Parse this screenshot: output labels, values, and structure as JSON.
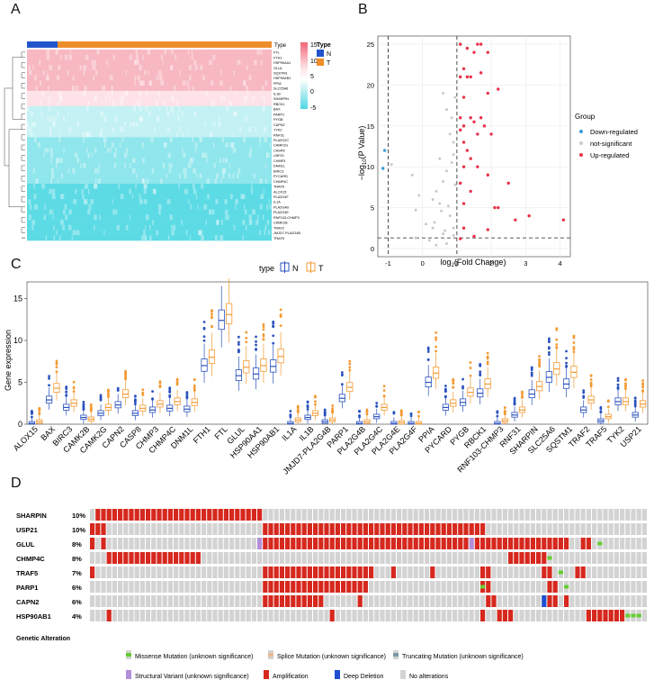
{
  "panels": {
    "a": "A",
    "b": "B",
    "c": "C",
    "d": "D"
  },
  "heatmap": {
    "genes": [
      "FTL",
      "FTH1",
      "HSP90AA1",
      "GLUL",
      "SQSTM1",
      "HSP90AB1",
      "PPIA",
      "SLC25A6",
      "IL1B",
      "SHARPIN",
      "RBCK1",
      "BAX",
      "PARP1",
      "PYGB",
      "CAPN2",
      "TYK2",
      "RNF31",
      "PLA2G2C",
      "CAMK2G",
      "CASP8",
      "USP21",
      "CHMP3",
      "DNM1L",
      "BIRC3",
      "PYCARD",
      "CHMP4C",
      "TRAF5",
      "ALOX15",
      "PLA2G4F",
      "IL1A",
      "PLA2G4B",
      "PLA2G4E",
      "RNF103-CHMP3",
      "CAMK2B",
      "TRAF2",
      "JMJD7-PLA2G4B",
      "TRAF5"
    ],
    "legend_title": "Type",
    "legend_scale": [
      "15",
      "10",
      "5",
      "0",
      "-5"
    ],
    "type_title": "Type",
    "types": [
      {
        "label": "N",
        "color": "#2255cc"
      },
      {
        "label": "T",
        "color": "#ee8e2a"
      }
    ]
  },
  "volcano": {
    "xlabel": "log2(Fold Change)",
    "ylabel": "-log10(P Value)",
    "xticks": [
      "-1",
      "0",
      "1",
      "2",
      "3",
      "4"
    ],
    "yticks": [
      "0",
      "5",
      "10",
      "15",
      "20",
      "25"
    ],
    "legend_title": "Group",
    "groups": [
      {
        "label": "Down-regulated",
        "color": "#3a9fd6"
      },
      {
        "label": "not-significant",
        "color": "#c9c9c9"
      },
      {
        "label": "Up-regulated",
        "color": "#e8324a"
      }
    ]
  },
  "chart_data": {
    "type": "boxplot",
    "title": "",
    "xlabel": "",
    "ylabel": "Gene expression",
    "ylim": [
      0,
      17
    ],
    "yticks": [
      0,
      5,
      10,
      15
    ],
    "legend_title": "type",
    "series": [
      {
        "name": "N",
        "color": "#2a52be"
      },
      {
        "name": "T",
        "color": "#f39a33"
      }
    ],
    "categories": [
      "ALOX15",
      "BAX",
      "BIRC3",
      "CAMK2B",
      "CAMK2G",
      "CAPN2",
      "CASP8",
      "CHMP3",
      "CHMP4C",
      "DNM1L",
      "FTH1",
      "FTL",
      "GLUL",
      "HSP90AA1",
      "HSP90AB1",
      "IL1A",
      "IL1B",
      "JMJD7-PLA2G4B",
      "PARP1",
      "PLA2G4B",
      "PLA2G4C",
      "PLA2G4E",
      "PLA2G4F",
      "PPIA",
      "PYCARD",
      "PYGB",
      "RBCK1",
      "RNF103-CHMP3",
      "RNF31",
      "SHARPIN",
      "SLC25A6",
      "SQSTM1",
      "TRAF2",
      "TRAF5",
      "TYK2",
      "USP21"
    ],
    "medians_N": [
      0.1,
      2.9,
      2.0,
      0.8,
      1.3,
      2.3,
      1.3,
      1.7,
      1.9,
      1.8,
      7.0,
      12.4,
      5.8,
      6.0,
      6.9,
      0.1,
      0.8,
      0.3,
      3.1,
      0.1,
      0.9,
      0.1,
      0.1,
      5.0,
      2.0,
      2.6,
      3.7,
      0.1,
      1.1,
      3.6,
      5.6,
      4.8,
      1.7,
      0.4,
      2.7,
      1.1
    ],
    "medians_T": [
      0.3,
      4.3,
      2.5,
      0.6,
      2.0,
      3.6,
      1.9,
      2.4,
      2.7,
      2.6,
      8.0,
      13.1,
      6.8,
      7.0,
      8.1,
      0.5,
      1.3,
      0.5,
      4.4,
      0.3,
      2.0,
      0.2,
      0.1,
      6.1,
      2.5,
      3.8,
      4.8,
      0.4,
      1.7,
      4.5,
      6.6,
      6.2,
      2.9,
      0.9,
      2.7,
      2.4
    ]
  },
  "oncoprint": {
    "genes": [
      {
        "name": "SHARPIN",
        "pct": "10%"
      },
      {
        "name": "USP21",
        "pct": "10%"
      },
      {
        "name": "GLUL",
        "pct": "8%"
      },
      {
        "name": "CHMP4C",
        "pct": "8%"
      },
      {
        "name": "TRAF5",
        "pct": "7%"
      },
      {
        "name": "PARP1",
        "pct": "6%"
      },
      {
        "name": "CAPN2",
        "pct": "6%"
      },
      {
        "name": "HSP90AB1",
        "pct": "4%"
      }
    ],
    "legend_title": "Genetic Alteration",
    "legend": [
      {
        "label": "Missense Mutation (unknown significance)",
        "color": "#66cc33",
        "kind": "small"
      },
      {
        "label": "Splice Mutation (unknown significance)",
        "color": "#e8b996",
        "kind": "small"
      },
      {
        "label": "Truncating Mutation (unknown significance)",
        "color": "#7a9aa5",
        "kind": "small"
      },
      {
        "label": "Structural Variant (unknown significance)",
        "color": "#b38ed9",
        "kind": "full"
      },
      {
        "label": "Amplification",
        "color": "#d6281e",
        "kind": "full"
      },
      {
        "label": "Deep Deletion",
        "color": "#1f4fd1",
        "kind": "full"
      },
      {
        "label": "No alterations",
        "color": "#d3d3d3",
        "kind": "full"
      }
    ]
  }
}
